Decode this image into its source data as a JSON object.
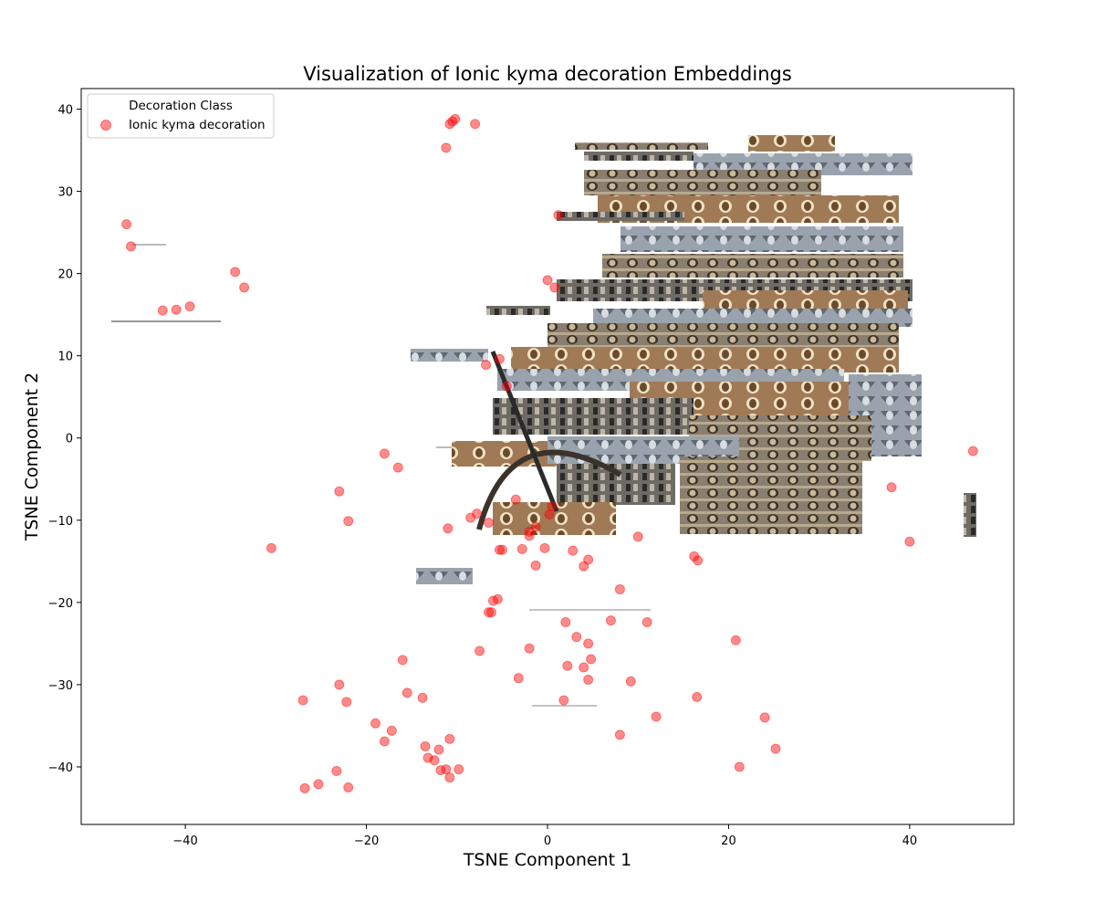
{
  "chart_data": {
    "type": "scatter",
    "title": "Visualization of Ionic kyma decoration Embeddings",
    "xlabel": "TSNE Component 1",
    "ylabel": "TSNE Component 2",
    "xlim": [
      -51.5,
      51.5
    ],
    "ylim": [
      -47,
      42.5
    ],
    "xticks": [
      -40,
      -20,
      0,
      20,
      40
    ],
    "yticks": [
      -40,
      -30,
      -20,
      -10,
      0,
      10,
      20,
      30,
      40
    ],
    "tick_labels_x": [
      "−40",
      "−20",
      "0",
      "20",
      "40"
    ],
    "tick_labels_y": [
      "−40",
      "−30",
      "−20",
      "−10",
      "0",
      "10",
      "20",
      "30",
      "40"
    ],
    "grid": false,
    "marker_color": "#ff0000",
    "marker_alpha": 0.45,
    "legend": {
      "title": "Decoration Class",
      "location": "upper-left",
      "entries": [
        "Ionic kyma decoration"
      ]
    },
    "series": [
      {
        "name": "Ionic kyma decoration",
        "points": [
          [
            -46.5,
            26.0
          ],
          [
            -46.0,
            23.3
          ],
          [
            -34.5,
            20.2
          ],
          [
            -33.5,
            18.3
          ],
          [
            -42.5,
            15.5
          ],
          [
            -41.0,
            15.6
          ],
          [
            -39.5,
            16.0
          ],
          [
            -10.5,
            38.5
          ],
          [
            -10.2,
            38.8
          ],
          [
            -10.8,
            38.2
          ],
          [
            -8.0,
            38.2
          ],
          [
            -11.2,
            35.3
          ],
          [
            1.2,
            27.1
          ],
          [
            0.0,
            19.2
          ],
          [
            0.8,
            18.3
          ],
          [
            -5.3,
            9.6
          ],
          [
            -6.8,
            8.9
          ],
          [
            -4.5,
            6.3
          ],
          [
            -18.0,
            -1.9
          ],
          [
            -16.5,
            -3.6
          ],
          [
            -23.0,
            -6.5
          ],
          [
            -22.0,
            -10.1
          ],
          [
            -30.5,
            -13.4
          ],
          [
            -11.0,
            -11.0
          ],
          [
            -8.5,
            -9.7
          ],
          [
            -7.8,
            -9.2
          ],
          [
            -6.5,
            -10.3
          ],
          [
            -1.3,
            -10.8
          ],
          [
            -2.0,
            -11.4
          ],
          [
            -2.0,
            -11.9
          ],
          [
            0.2,
            -9.3
          ],
          [
            0.5,
            -8.3
          ],
          [
            -3.5,
            -7.5
          ],
          [
            -5.3,
            -13.6
          ],
          [
            -5.0,
            -13.6
          ],
          [
            -2.8,
            -13.5
          ],
          [
            -0.3,
            -13.4
          ],
          [
            2.8,
            -13.7
          ],
          [
            4.5,
            -14.8
          ],
          [
            4.0,
            -15.6
          ],
          [
            -1.3,
            -15.5
          ],
          [
            10.0,
            -12.0
          ],
          [
            16.2,
            -14.4
          ],
          [
            16.6,
            -14.9
          ],
          [
            38.0,
            -6.0
          ],
          [
            40.0,
            -12.6
          ],
          [
            47.0,
            -1.6
          ],
          [
            -5.5,
            -19.6
          ],
          [
            -6.0,
            -19.8
          ],
          [
            -6.5,
            -21.2
          ],
          [
            -6.2,
            -21.2
          ],
          [
            8.0,
            -18.4
          ],
          [
            2.0,
            -22.4
          ],
          [
            3.2,
            -24.2
          ],
          [
            4.5,
            -25.0
          ],
          [
            4.8,
            -26.9
          ],
          [
            7.0,
            -22.2
          ],
          [
            11.0,
            -22.4
          ],
          [
            20.8,
            -24.6
          ],
          [
            -2.0,
            -25.6
          ],
          [
            -7.5,
            -25.9
          ],
          [
            2.2,
            -27.7
          ],
          [
            4.0,
            -27.9
          ],
          [
            4.5,
            -29.4
          ],
          [
            -3.2,
            -29.2
          ],
          [
            9.2,
            -29.6
          ],
          [
            16.5,
            -31.5
          ],
          [
            12.0,
            -33.9
          ],
          [
            24.0,
            -34.0
          ],
          [
            25.2,
            -37.8
          ],
          [
            21.2,
            -40.0
          ],
          [
            8.0,
            -36.1
          ],
          [
            1.8,
            -31.9
          ],
          [
            -16.0,
            -27.0
          ],
          [
            -23.0,
            -30.0
          ],
          [
            -15.5,
            -31.0
          ],
          [
            -13.8,
            -31.6
          ],
          [
            -27.0,
            -31.9
          ],
          [
            -22.2,
            -32.1
          ],
          [
            -19.0,
            -34.7
          ],
          [
            -17.2,
            -35.6
          ],
          [
            -18.0,
            -36.9
          ],
          [
            -10.8,
            -36.6
          ],
          [
            -13.5,
            -37.5
          ],
          [
            -12.0,
            -37.9
          ],
          [
            -13.2,
            -38.9
          ],
          [
            -12.5,
            -39.2
          ],
          [
            -11.8,
            -40.4
          ],
          [
            -11.2,
            -40.3
          ],
          [
            -9.8,
            -40.3
          ],
          [
            -10.8,
            -41.3
          ],
          [
            -23.3,
            -40.5
          ],
          [
            -25.3,
            -42.1
          ],
          [
            -26.8,
            -42.6
          ],
          [
            -22.0,
            -42.5
          ]
        ]
      }
    ]
  }
}
